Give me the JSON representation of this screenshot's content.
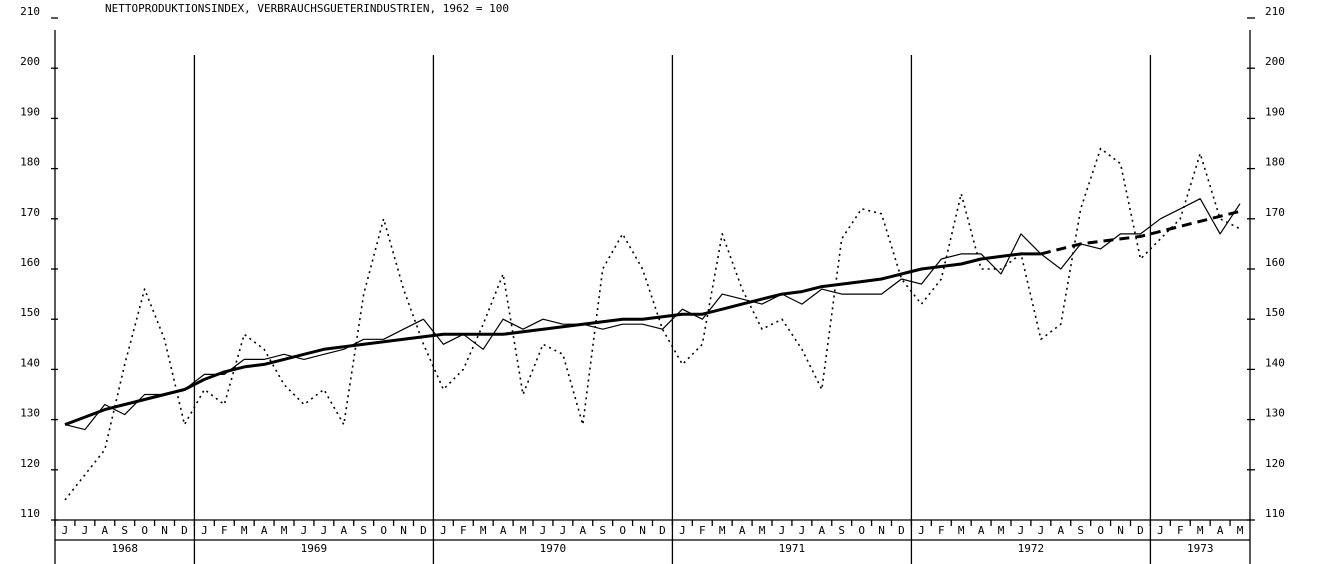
{
  "chart_data": {
    "type": "line",
    "title": "NETTOPRODUKTIONSINDEX, VERBRAUCHSGUETERINDUSTRIEN, 1962 = 100",
    "year_groups": [
      {
        "year": "1968",
        "months": [
          "J",
          "J",
          "A",
          "S",
          "O",
          "N",
          "D"
        ]
      },
      {
        "year": "1969",
        "months": [
          "J",
          "F",
          "M",
          "A",
          "M",
          "J",
          "J",
          "A",
          "S",
          "O",
          "N",
          "D"
        ]
      },
      {
        "year": "1970",
        "months": [
          "J",
          "F",
          "M",
          "A",
          "M",
          "J",
          "J",
          "A",
          "S",
          "O",
          "N",
          "D"
        ]
      },
      {
        "year": "1971",
        "months": [
          "J",
          "F",
          "M",
          "A",
          "M",
          "J",
          "J",
          "A",
          "S",
          "O",
          "N",
          "D"
        ]
      },
      {
        "year": "1972",
        "months": [
          "J",
          "F",
          "M",
          "A",
          "M",
          "J",
          "J",
          "A",
          "S",
          "O",
          "N",
          "D"
        ]
      },
      {
        "year": "1973",
        "months": [
          "J",
          "F",
          "M",
          "A",
          "M"
        ]
      }
    ],
    "ylim": [
      110,
      210
    ],
    "yticks": [
      110,
      120,
      130,
      140,
      150,
      160,
      170,
      180,
      190,
      200,
      210
    ],
    "y2lim": [
      110,
      210
    ],
    "y2ticks": [
      110,
      120,
      130,
      140,
      150,
      160,
      170,
      180,
      190,
      200,
      210
    ],
    "series": [
      {
        "color": "#000000",
        "style": "dotted",
        "width": 1.6,
        "values": [
          114,
          119,
          124,
          141,
          156,
          146,
          129,
          136,
          133,
          147,
          144,
          137,
          133,
          136,
          129,
          155,
          170,
          156,
          145,
          136,
          140,
          149,
          159,
          135,
          145,
          143,
          129,
          160,
          167,
          160,
          148,
          141,
          145,
          167,
          156,
          148,
          150,
          144,
          136,
          166,
          172,
          171,
          158,
          153,
          158,
          175,
          160,
          160,
          163,
          146,
          149,
          172,
          184,
          181,
          162,
          166,
          170,
          183,
          170,
          168
        ]
      },
      {
        "color": "#000000",
        "style": "solid",
        "width": 1.2,
        "values": [
          129,
          128,
          133,
          131,
          135,
          135,
          136,
          139,
          139,
          142,
          142,
          143,
          142,
          143,
          144,
          146,
          146,
          148,
          150,
          145,
          147,
          144,
          150,
          148,
          150,
          149,
          149,
          148,
          149,
          149,
          148,
          152,
          150,
          155,
          154,
          153,
          155,
          153,
          156,
          155,
          155,
          155,
          158,
          157,
          162,
          163,
          163,
          159,
          167,
          163,
          160,
          165,
          164,
          167,
          167,
          170,
          172,
          174,
          167,
          173
        ]
      },
      {
        "color": "#000000",
        "style": "solid",
        "width": 3,
        "values": [
          129,
          130.5,
          132,
          133,
          134,
          135,
          136,
          138,
          139.5,
          140.5,
          141,
          142,
          143,
          144,
          144.5,
          145,
          145.5,
          146,
          146.5,
          147,
          147,
          147,
          147,
          147.5,
          148,
          148.5,
          149,
          149.5,
          150,
          150,
          150.5,
          151,
          151,
          152,
          153,
          154,
          155,
          155.5,
          156.5,
          157,
          157.5,
          158,
          159,
          160,
          160.5,
          161,
          162,
          162.5,
          163,
          163,
          null,
          null,
          null,
          null,
          null,
          null,
          null,
          null,
          null,
          null
        ]
      },
      {
        "color": "#000000",
        "style": "dashed",
        "width": 3,
        "values": [
          null,
          null,
          null,
          null,
          null,
          null,
          null,
          null,
          null,
          null,
          null,
          null,
          null,
          null,
          null,
          null,
          null,
          null,
          null,
          null,
          null,
          null,
          null,
          null,
          null,
          null,
          null,
          null,
          null,
          null,
          null,
          null,
          null,
          null,
          null,
          null,
          null,
          null,
          null,
          null,
          null,
          null,
          null,
          null,
          null,
          null,
          null,
          null,
          null,
          163,
          164,
          165,
          165.5,
          166,
          166.5,
          167.5,
          168.5,
          169.5,
          170.5,
          171.5
        ]
      }
    ]
  }
}
